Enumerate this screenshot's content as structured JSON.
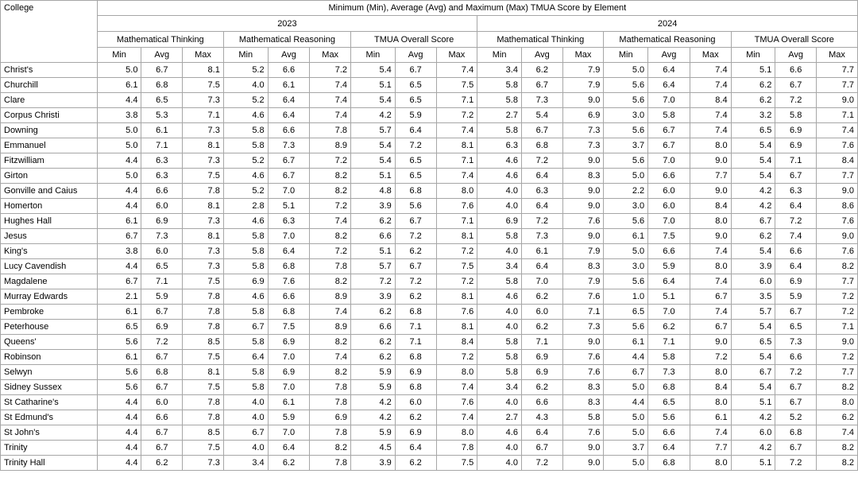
{
  "header": {
    "college_label": "College",
    "title": "Minimum (Min), Average (Avg) and Maximum (Max) TMUA Score by Element",
    "years": [
      "2023",
      "2024"
    ],
    "groups": [
      "Mathematical Thinking",
      "Mathematical Reasoning",
      "TMUA Overall Score"
    ],
    "stats": [
      "Min",
      "Avg",
      "Max"
    ]
  },
  "rows": [
    {
      "college": "Christ's",
      "values": [
        "5.0",
        "6.7",
        "8.1",
        "5.2",
        "6.6",
        "7.2",
        "5.4",
        "6.7",
        "7.4",
        "3.4",
        "6.2",
        "7.9",
        "5.0",
        "6.4",
        "7.4",
        "5.1",
        "6.6",
        "7.7"
      ]
    },
    {
      "college": "Churchill",
      "values": [
        "6.1",
        "6.8",
        "7.5",
        "4.0",
        "6.1",
        "7.4",
        "5.1",
        "6.5",
        "7.5",
        "5.8",
        "6.7",
        "7.9",
        "5.6",
        "6.4",
        "7.4",
        "6.2",
        "6.7",
        "7.7"
      ]
    },
    {
      "college": "Clare",
      "values": [
        "4.4",
        "6.5",
        "7.3",
        "5.2",
        "6.4",
        "7.4",
        "5.4",
        "6.5",
        "7.1",
        "5.8",
        "7.3",
        "9.0",
        "5.6",
        "7.0",
        "8.4",
        "6.2",
        "7.2",
        "9.0"
      ]
    },
    {
      "college": "Corpus Christi",
      "values": [
        "3.8",
        "5.3",
        "7.1",
        "4.6",
        "6.4",
        "7.4",
        "4.2",
        "5.9",
        "7.2",
        "2.7",
        "5.4",
        "6.9",
        "3.0",
        "5.8",
        "7.4",
        "3.2",
        "5.8",
        "7.1"
      ]
    },
    {
      "college": "Downing",
      "values": [
        "5.0",
        "6.1",
        "7.3",
        "5.8",
        "6.6",
        "7.8",
        "5.7",
        "6.4",
        "7.4",
        "5.8",
        "6.7",
        "7.3",
        "5.6",
        "6.7",
        "7.4",
        "6.5",
        "6.9",
        "7.4"
      ]
    },
    {
      "college": "Emmanuel",
      "values": [
        "5.0",
        "7.1",
        "8.1",
        "5.8",
        "7.3",
        "8.9",
        "5.4",
        "7.2",
        "8.1",
        "6.3",
        "6.8",
        "7.3",
        "3.7",
        "6.7",
        "8.0",
        "5.4",
        "6.9",
        "7.6"
      ]
    },
    {
      "college": "Fitzwilliam",
      "values": [
        "4.4",
        "6.3",
        "7.3",
        "5.2",
        "6.7",
        "7.2",
        "5.4",
        "6.5",
        "7.1",
        "4.6",
        "7.2",
        "9.0",
        "5.6",
        "7.0",
        "9.0",
        "5.4",
        "7.1",
        "8.4"
      ]
    },
    {
      "college": "Girton",
      "values": [
        "5.0",
        "6.3",
        "7.5",
        "4.6",
        "6.7",
        "8.2",
        "5.1",
        "6.5",
        "7.4",
        "4.6",
        "6.4",
        "8.3",
        "5.0",
        "6.6",
        "7.7",
        "5.4",
        "6.7",
        "7.7"
      ]
    },
    {
      "college": "Gonville and Caius",
      "values": [
        "4.4",
        "6.6",
        "7.8",
        "5.2",
        "7.0",
        "8.2",
        "4.8",
        "6.8",
        "8.0",
        "4.0",
        "6.3",
        "9.0",
        "2.2",
        "6.0",
        "9.0",
        "4.2",
        "6.3",
        "9.0"
      ]
    },
    {
      "college": "Homerton",
      "values": [
        "4.4",
        "6.0",
        "8.1",
        "2.8",
        "5.1",
        "7.2",
        "3.9",
        "5.6",
        "7.6",
        "4.0",
        "6.4",
        "9.0",
        "3.0",
        "6.0",
        "8.4",
        "4.2",
        "6.4",
        "8.6"
      ]
    },
    {
      "college": "Hughes Hall",
      "values": [
        "6.1",
        "6.9",
        "7.3",
        "4.6",
        "6.3",
        "7.4",
        "6.2",
        "6.7",
        "7.1",
        "6.9",
        "7.2",
        "7.6",
        "5.6",
        "7.0",
        "8.0",
        "6.7",
        "7.2",
        "7.6"
      ]
    },
    {
      "college": "Jesus",
      "values": [
        "6.7",
        "7.3",
        "8.1",
        "5.8",
        "7.0",
        "8.2",
        "6.6",
        "7.2",
        "8.1",
        "5.8",
        "7.3",
        "9.0",
        "6.1",
        "7.5",
        "9.0",
        "6.2",
        "7.4",
        "9.0"
      ]
    },
    {
      "college": "King's",
      "values": [
        "3.8",
        "6.0",
        "7.3",
        "5.8",
        "6.4",
        "7.2",
        "5.1",
        "6.2",
        "7.2",
        "4.0",
        "6.1",
        "7.9",
        "5.0",
        "6.6",
        "7.4",
        "5.4",
        "6.6",
        "7.6"
      ]
    },
    {
      "college": "Lucy Cavendish",
      "values": [
        "4.4",
        "6.5",
        "7.3",
        "5.8",
        "6.8",
        "7.8",
        "5.7",
        "6.7",
        "7.5",
        "3.4",
        "6.4",
        "8.3",
        "3.0",
        "5.9",
        "8.0",
        "3.9",
        "6.4",
        "8.2"
      ]
    },
    {
      "college": "Magdalene",
      "values": [
        "6.7",
        "7.1",
        "7.5",
        "6.9",
        "7.6",
        "8.2",
        "7.2",
        "7.2",
        "7.2",
        "5.8",
        "7.0",
        "7.9",
        "5.6",
        "6.4",
        "7.4",
        "6.0",
        "6.9",
        "7.7"
      ]
    },
    {
      "college": "Murray Edwards",
      "values": [
        "2.1",
        "5.9",
        "7.8",
        "4.6",
        "6.6",
        "8.9",
        "3.9",
        "6.2",
        "8.1",
        "4.6",
        "6.2",
        "7.6",
        "1.0",
        "5.1",
        "6.7",
        "3.5",
        "5.9",
        "7.2"
      ]
    },
    {
      "college": "Pembroke",
      "values": [
        "6.1",
        "6.7",
        "7.8",
        "5.8",
        "6.8",
        "7.4",
        "6.2",
        "6.8",
        "7.6",
        "4.0",
        "6.0",
        "7.1",
        "6.5",
        "7.0",
        "7.4",
        "5.7",
        "6.7",
        "7.2"
      ]
    },
    {
      "college": "Peterhouse",
      "values": [
        "6.5",
        "6.9",
        "7.8",
        "6.7",
        "7.5",
        "8.9",
        "6.6",
        "7.1",
        "8.1",
        "4.0",
        "6.2",
        "7.3",
        "5.6",
        "6.2",
        "6.7",
        "5.4",
        "6.5",
        "7.1"
      ]
    },
    {
      "college": "Queens'",
      "values": [
        "5.6",
        "7.2",
        "8.5",
        "5.8",
        "6.9",
        "8.2",
        "6.2",
        "7.1",
        "8.4",
        "5.8",
        "7.1",
        "9.0",
        "6.1",
        "7.1",
        "9.0",
        "6.5",
        "7.3",
        "9.0"
      ]
    },
    {
      "college": "Robinson",
      "values": [
        "6.1",
        "6.7",
        "7.5",
        "6.4",
        "7.0",
        "7.4",
        "6.2",
        "6.8",
        "7.2",
        "5.8",
        "6.9",
        "7.6",
        "4.4",
        "5.8",
        "7.2",
        "5.4",
        "6.6",
        "7.2"
      ]
    },
    {
      "college": "Selwyn",
      "values": [
        "5.6",
        "6.8",
        "8.1",
        "5.8",
        "6.9",
        "8.2",
        "5.9",
        "6.9",
        "8.0",
        "5.8",
        "6.9",
        "7.6",
        "6.7",
        "7.3",
        "8.0",
        "6.7",
        "7.2",
        "7.7"
      ]
    },
    {
      "college": "Sidney Sussex",
      "values": [
        "5.6",
        "6.7",
        "7.5",
        "5.8",
        "7.0",
        "7.8",
        "5.9",
        "6.8",
        "7.4",
        "3.4",
        "6.2",
        "8.3",
        "5.0",
        "6.8",
        "8.4",
        "5.4",
        "6.7",
        "8.2"
      ]
    },
    {
      "college": "St Catharine's",
      "values": [
        "4.4",
        "6.0",
        "7.8",
        "4.0",
        "6.1",
        "7.8",
        "4.2",
        "6.0",
        "7.6",
        "4.0",
        "6.6",
        "8.3",
        "4.4",
        "6.5",
        "8.0",
        "5.1",
        "6.7",
        "8.0"
      ]
    },
    {
      "college": "St Edmund's",
      "values": [
        "4.4",
        "6.6",
        "7.8",
        "4.0",
        "5.9",
        "6.9",
        "4.2",
        "6.2",
        "7.4",
        "2.7",
        "4.3",
        "5.8",
        "5.0",
        "5.6",
        "6.1",
        "4.2",
        "5.2",
        "6.2"
      ]
    },
    {
      "college": "St John's",
      "values": [
        "4.4",
        "6.7",
        "8.5",
        "6.7",
        "7.0",
        "7.8",
        "5.9",
        "6.9",
        "8.0",
        "4.6",
        "6.4",
        "7.6",
        "5.0",
        "6.6",
        "7.4",
        "6.0",
        "6.8",
        "7.4"
      ]
    },
    {
      "college": "Trinity",
      "values": [
        "4.4",
        "6.7",
        "7.5",
        "4.0",
        "6.4",
        "8.2",
        "4.5",
        "6.4",
        "7.8",
        "4.0",
        "6.7",
        "9.0",
        "3.7",
        "6.4",
        "7.7",
        "4.2",
        "6.7",
        "8.2"
      ]
    },
    {
      "college": "Trinity Hall",
      "values": [
        "4.4",
        "6.2",
        "7.3",
        "3.4",
        "6.2",
        "7.8",
        "3.9",
        "6.2",
        "7.5",
        "4.0",
        "7.2",
        "9.0",
        "5.0",
        "6.8",
        "8.0",
        "5.1",
        "7.2",
        "8.2"
      ]
    }
  ]
}
